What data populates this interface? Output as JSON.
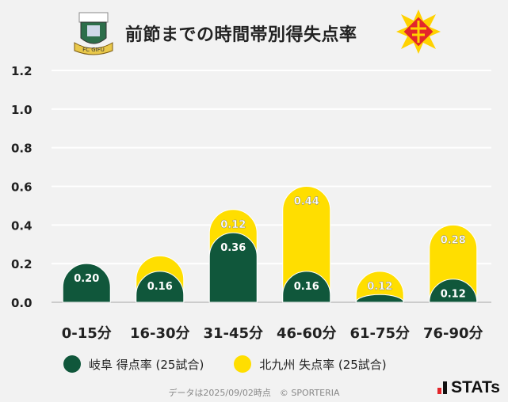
{
  "header": {
    "title": "前節までの時間帯別得失点率",
    "home_logo": "FC GIFU",
    "away_logo": "Kitakyushu emblem"
  },
  "chart_data": {
    "type": "bar",
    "stacked": true,
    "title": "前節までの時間帯別得失点率",
    "categories": [
      "0-15分",
      "16-30分",
      "31-45分",
      "46-60分",
      "61-75分",
      "76-90分"
    ],
    "series": [
      {
        "name": "岐阜 得点率 (25試合)",
        "color": "#10573b",
        "values": [
          0.2,
          0.16,
          0.36,
          0.16,
          0.04,
          0.12
        ],
        "labels": [
          "0.20",
          "0.16",
          "0.36",
          "0.16",
          "",
          "0.12"
        ]
      },
      {
        "name": "北九州 失点率 (25試合)",
        "color": "#ffde00",
        "values": [
          0,
          0.08,
          0.12,
          0.44,
          0.12,
          0.28
        ],
        "labels": [
          "",
          "",
          "0.12",
          "0.44",
          "0.12",
          "0.28"
        ]
      }
    ],
    "yticks": [
      "0.0",
      "0.2",
      "0.4",
      "0.6",
      "0.8",
      "1.0",
      "1.2"
    ],
    "ylim": [
      0,
      1.2
    ],
    "grid": true,
    "legend": "bottom"
  },
  "footer": {
    "note": "データは2025/09/02時点　© SPORTERIA",
    "brand": "STATs"
  }
}
